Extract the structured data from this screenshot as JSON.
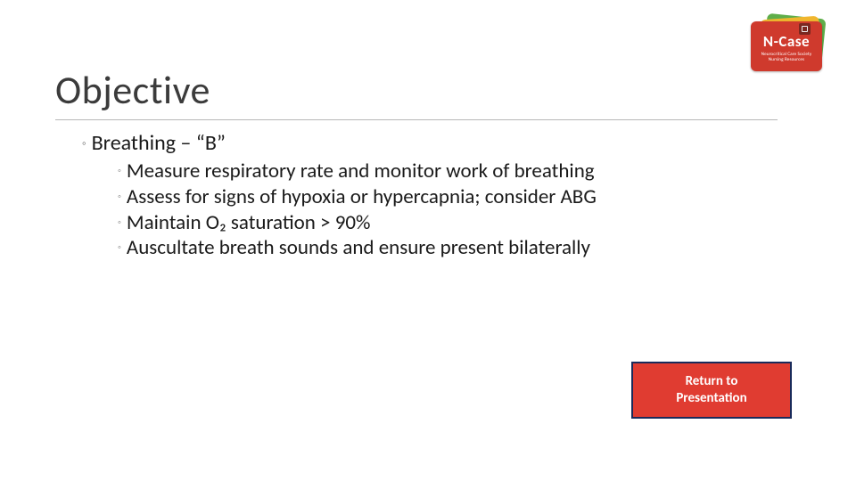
{
  "title": "Objective",
  "content": {
    "heading": "Breathing – “B”",
    "items": [
      "Measure respiratory rate and monitor work of breathing",
      "Assess for signs of hypoxia or hypercapnia; consider ABG",
      "Maintain O₂ saturation > 90%",
      "Auscultate breath sounds and ensure present bilaterally"
    ]
  },
  "button": {
    "line1": "Return to",
    "line2": "Presentation"
  },
  "logo": {
    "brand": "N-Case",
    "sub1": "Neurocritical Care Society",
    "sub2": "Nursing Resources"
  },
  "colors": {
    "button_bg": "#e03c31",
    "button_border": "#1a2a5a",
    "rule": "#b7b7b7"
  }
}
